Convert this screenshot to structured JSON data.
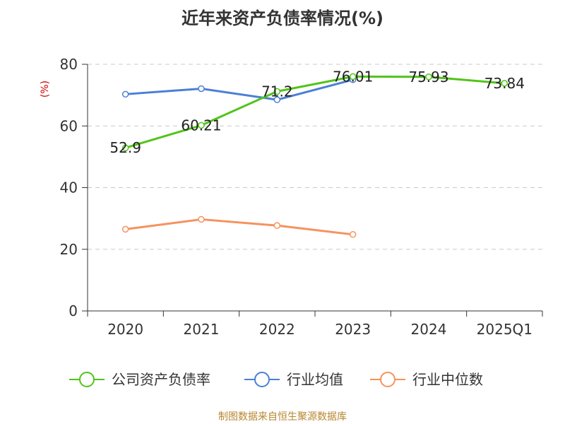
{
  "chart_data": {
    "type": "line",
    "title": "近年来资产负债率情况(%)",
    "ylabel": "(%)",
    "xlabel": "",
    "categories": [
      "2020",
      "2021",
      "2022",
      "2023",
      "2024",
      "2025Q1"
    ],
    "ylim": [
      0,
      80
    ],
    "yticks": [
      0,
      20,
      40,
      60,
      80
    ],
    "grid": true,
    "legend_position": "bottom",
    "series": [
      {
        "name": "公司资产负债率",
        "color": "#52c41a",
        "values": [
          52.9,
          60.21,
          71.2,
          76.01,
          75.93,
          73.84
        ],
        "labels": [
          "52.9",
          "60.21",
          "71.2",
          "76.01",
          "75.93",
          "73.84"
        ]
      },
      {
        "name": "行业均值",
        "color": "#4a7fd6",
        "values": [
          70.3,
          72.1,
          68.5,
          75.0,
          null,
          null
        ]
      },
      {
        "name": "行业中位数",
        "color": "#f5925e",
        "values": [
          26.5,
          29.7,
          27.7,
          24.8,
          null,
          null
        ]
      }
    ]
  },
  "source": "制图数据来自恒生聚源数据库"
}
